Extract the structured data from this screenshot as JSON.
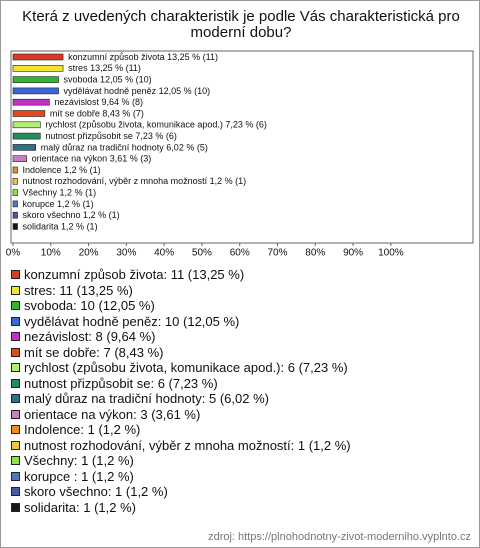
{
  "chart_data": {
    "type": "bar",
    "title": "Která z uvedených charakteristik je podle Vás charakteristická pro moderní dobu?",
    "values": [
      13.25,
      13.25,
      12.05,
      12.05,
      9.64,
      8.43,
      7.23,
      7.23,
      6.02,
      3.61,
      1.2,
      1.2,
      1.2,
      1.2,
      1.2,
      1.2
    ],
    "value_labels": [
      "konzumní způsob života 13,25 % (11)",
      "stres 13,25 % (11)",
      "svoboda 12,05 % (10)",
      "vydělávat hodně peněz 12,05 % (10)",
      "nezávislost 9,64 % (8)",
      "mít se dobře 8,43 % (7)",
      "rychlost (způsobu života, komunikace apod.) 7,23 % (6)",
      "nutnost přizpůsobit se 7,23 % (6)",
      "malý důraz na tradiční hodnoty 6,02 % (5)",
      "orientace na výkon 3,61 % (3)",
      "Indolence 1,2 % (1)",
      "nutnost rozhodování, výběr z mnoha možností 1,2 % (1)",
      "Všechny 1,2 % (1)",
      "korupce  1,2 % (1)",
      "skoro všechno 1,2 % (1)",
      "solidarita 1,2 % (1)"
    ],
    "colors": [
      "#d83a22",
      "#f2e433",
      "#2fb52f",
      "#3a66d6",
      "#c22fc4",
      "#e5481c",
      "#b4ec74",
      "#258a5c",
      "#2f6f8a",
      "#c77fc2",
      "#f08a22",
      "#f3c442",
      "#8ee24c",
      "#4b78c9",
      "#4a56a8",
      "#151515"
    ],
    "legend": [
      "konzumní způsob života: 11 (13,25 %)",
      "stres: 11 (13,25 %)",
      "svoboda: 10 (12,05 %)",
      "vydělávat hodně peněz: 10 (12,05 %)",
      "nezávislost: 8 (9,64 %)",
      "mít se dobře: 7 (8,43 %)",
      "rychlost (způsobu života, komunikace apod.): 6 (7,23 %)",
      "nutnost přizpůsobit se: 6 (7,23 %)",
      "malý důraz na tradiční hodnoty: 5 (6,02 %)",
      "orientace na výkon: 3 (3,61 %)",
      "Indolence: 1 (1,2 %)",
      "nutnost rozhodování, výběr z mnoha možností: 1 (1,2 %)",
      "Všechny: 1 (1,2 %)",
      "korupce : 1 (1,2 %)",
      "skoro všechno: 1 (1,2 %)",
      "solidarita: 1 (1,2 %)"
    ],
    "xlim": [
      0,
      122
    ],
    "xticks": [
      {
        "value": 0,
        "label": "0%"
      },
      {
        "value": 10,
        "label": "10%"
      },
      {
        "value": 20,
        "label": "20%"
      },
      {
        "value": 30,
        "label": "30%"
      },
      {
        "value": 40,
        "label": "40%"
      },
      {
        "value": 50,
        "label": "50%"
      },
      {
        "value": 60,
        "label": "60%"
      },
      {
        "value": 70,
        "label": "70%"
      },
      {
        "value": 80,
        "label": "80%"
      },
      {
        "value": 90,
        "label": "90%"
      },
      {
        "value": 100,
        "label": "100%"
      }
    ],
    "source": "zdroj: https://plnohodnotny-zivot-moderniho.vyplnto.cz"
  }
}
